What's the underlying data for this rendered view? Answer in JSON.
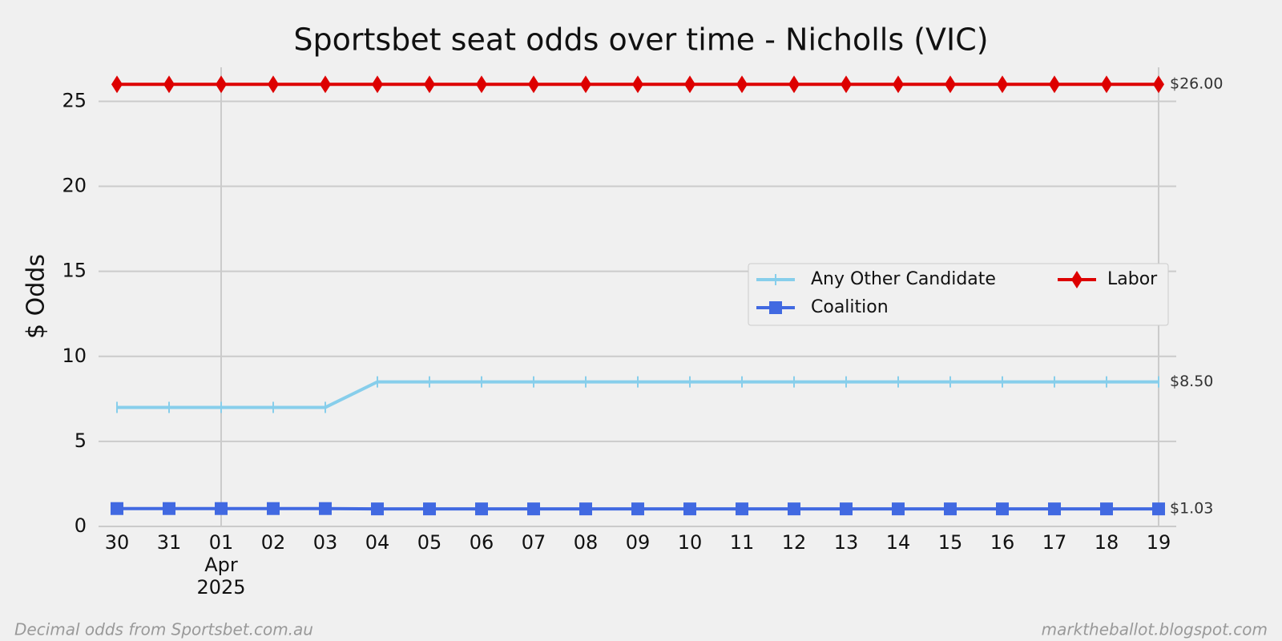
{
  "chart_data": {
    "type": "line",
    "title": "Sportsbet seat odds over time - Nicholls (VIC)",
    "ylabel": "$ Odds",
    "categories": [
      "30",
      "31",
      "01\nApr\n2025",
      "02",
      "03",
      "04",
      "05",
      "06",
      "07",
      "08",
      "09",
      "10",
      "11",
      "12",
      "13",
      "14",
      "15",
      "16",
      "17",
      "18",
      "19"
    ],
    "series": [
      {
        "name": "Any Other Candidate",
        "color": "#87ceeb",
        "marker": "vline",
        "values": [
          7,
          7,
          7,
          7,
          7,
          8.5,
          8.5,
          8.5,
          8.5,
          8.5,
          8.5,
          8.5,
          8.5,
          8.5,
          8.5,
          8.5,
          8.5,
          8.5,
          8.5,
          8.5,
          8.5
        ],
        "end_label": "$8.50"
      },
      {
        "name": "Coalition",
        "color": "#4169e1",
        "marker": "square",
        "values": [
          1.05,
          1.05,
          1.05,
          1.05,
          1.05,
          1.03,
          1.03,
          1.03,
          1.03,
          1.03,
          1.03,
          1.03,
          1.03,
          1.03,
          1.03,
          1.03,
          1.03,
          1.03,
          1.03,
          1.03,
          1.03
        ],
        "end_label": "$1.03"
      },
      {
        "name": "Labor",
        "color": "#dd0000",
        "marker": "diamond",
        "values": [
          26,
          26,
          26,
          26,
          26,
          26,
          26,
          26,
          26,
          26,
          26,
          26,
          26,
          26,
          26,
          26,
          26,
          26,
          26,
          26,
          26
        ],
        "end_label": "$26.00"
      }
    ],
    "ylim": [
      0,
      27
    ],
    "yticks": [
      0,
      5,
      10,
      15,
      20,
      25
    ],
    "grid": true,
    "legend": "center right",
    "footer_left": "Decimal odds from Sportsbet.com.au",
    "footer_right": "marktheballot.blogspot.com"
  }
}
